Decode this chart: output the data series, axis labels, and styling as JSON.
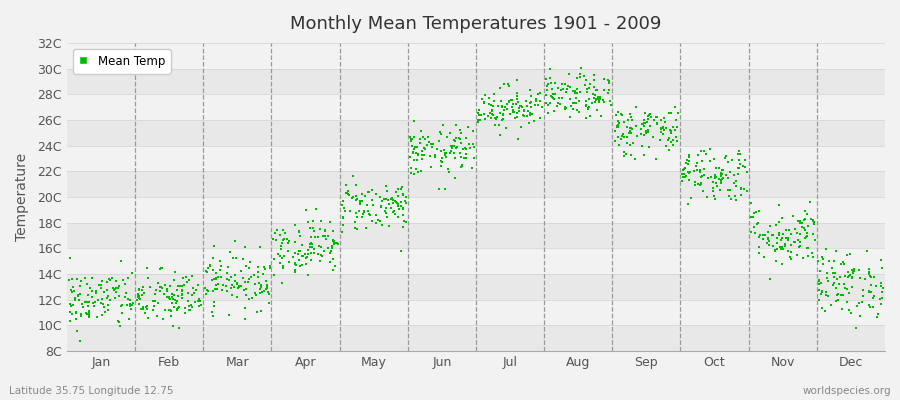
{
  "title": "Monthly Mean Temperatures 1901 - 2009",
  "ylabel": "Temperature",
  "subtitle_left": "Latitude 35.75 Longitude 12.75",
  "subtitle_right": "worldspecies.org",
  "legend_label": "Mean Temp",
  "dot_color": "#00bb00",
  "background_color": "#f2f2f2",
  "plot_bg_color_dark": "#e8e8e8",
  "plot_bg_color_light": "#f2f2f2",
  "ylim": [
    8,
    32
  ],
  "yticks": [
    8,
    10,
    12,
    14,
    16,
    18,
    20,
    22,
    24,
    26,
    28,
    30,
    32
  ],
  "ytick_labels": [
    "8C",
    "10C",
    "12C",
    "14C",
    "16C",
    "18C",
    "20C",
    "22C",
    "24C",
    "26C",
    "28C",
    "30C",
    "32C"
  ],
  "month_means": [
    12.0,
    12.1,
    13.5,
    16.2,
    19.3,
    23.5,
    27.0,
    27.8,
    25.2,
    21.8,
    17.0,
    13.2
  ],
  "month_stds": [
    1.2,
    1.1,
    1.1,
    1.1,
    1.0,
    1.0,
    0.85,
    0.85,
    1.0,
    1.1,
    1.2,
    1.3
  ],
  "n_years": 109,
  "months": [
    "Jan",
    "Feb",
    "Mar",
    "Apr",
    "May",
    "Jun",
    "Jul",
    "Aug",
    "Sep",
    "Oct",
    "Nov",
    "Dec"
  ],
  "marker_size": 4,
  "figsize": [
    9.0,
    4.0
  ],
  "dpi": 100
}
